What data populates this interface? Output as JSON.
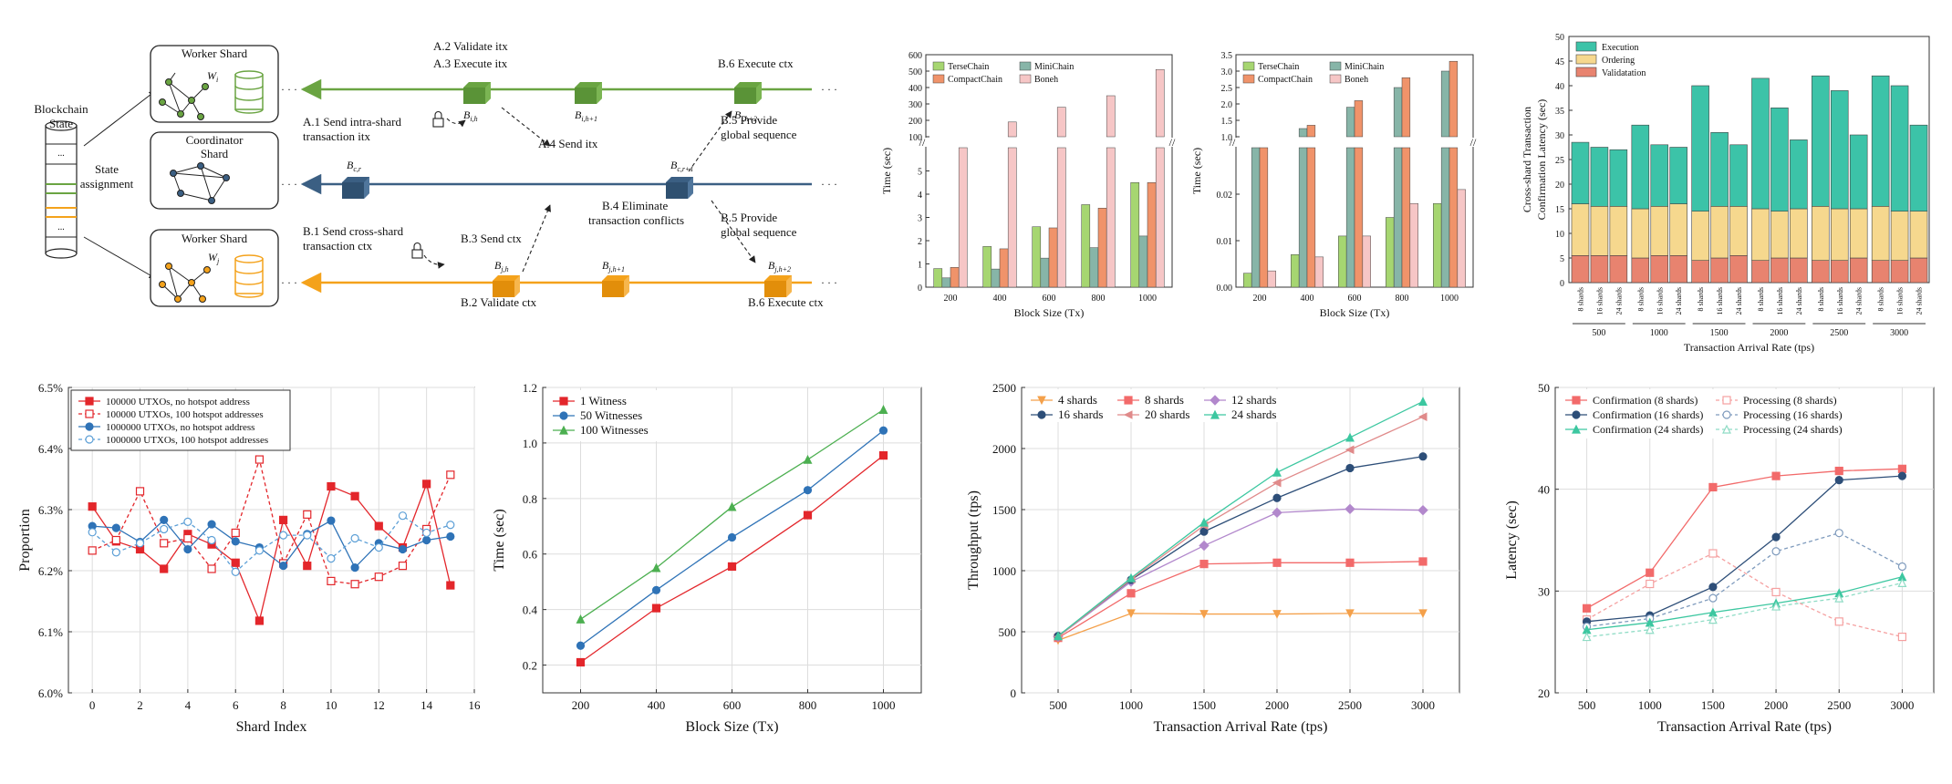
{
  "diagram": {
    "blockchain_state": [
      "Blockchain",
      "State"
    ],
    "state_assignment": [
      "State",
      "assignment"
    ],
    "worker_shard_i": "Worker Shard",
    "worker_shard_i_sub": "W",
    "worker_shard_i_subidx": "i",
    "coordinator_shard": [
      "Coordinator",
      "Shard"
    ],
    "worker_shard_j": "Worker Shard",
    "worker_shard_j_sub": "W",
    "worker_shard_j_subidx": "j",
    "dots": "· · ·",
    "a1": [
      "A.1 Send intra-shard",
      "transaction itx"
    ],
    "a2": "A.2 Validate itx",
    "a3": "A.3 Execute itx",
    "a4": "A.4 Send itx",
    "b1": [
      "B.1 Send cross-shard",
      "transaction ctx"
    ],
    "b2": "B.2 Validate ctx",
    "b3": "B.3 Send ctx",
    "b4": [
      "B.4 Eliminate",
      "transaction conflicts"
    ],
    "b5a": [
      "B.5 Provide",
      "global sequence"
    ],
    "b5b": [
      "B.5 Provide",
      "global sequence"
    ],
    "b6a": "B.6 Execute ctx",
    "b6b": "B.6 Execute ctx",
    "block_labels": {
      "bih": "B",
      "bih_sub": "i,h",
      "bih1": "B",
      "bih1_sub": "i,h+1",
      "bih2": "B",
      "bih2_sub": "i,h+2",
      "bcr": "B",
      "bcr_sub": "c,r",
      "bcr1": "B",
      "bcr1_sub": "c,r+1",
      "bjh": "B",
      "bjh_sub": "j,h",
      "bjh1": "B",
      "bjh1_sub": "j,h+1",
      "bjh2": "B",
      "bjh2_sub": "j,h+2"
    },
    "colors": {
      "green": "#6aa442",
      "blue": "#3b5f83",
      "orange": "#f4a21b"
    }
  },
  "chart_data": [
    {
      "id": "chart-a",
      "type": "bar",
      "xlabel": "Block Size (Tx)",
      "ylabel": "Time (sec)",
      "categories": [
        "200",
        "400",
        "600",
        "800",
        "1000"
      ],
      "axis_break": {
        "lower_max": 6,
        "upper_min": 100,
        "upper_max": 600
      },
      "lower_ticks": [
        0,
        1,
        2,
        3,
        4,
        5
      ],
      "upper_ticks": [
        100,
        200,
        300,
        400,
        500,
        600
      ],
      "series": [
        {
          "name": "TerseChain",
          "color": "#a6d671",
          "values": [
            0.8,
            1.75,
            2.6,
            3.55,
            4.5
          ]
        },
        {
          "name": "MiniChain",
          "color": "#87b5a8",
          "values": [
            0.4,
            0.78,
            1.25,
            1.7,
            2.2
          ]
        },
        {
          "name": "CompactChain",
          "color": "#f0936a",
          "values": [
            0.85,
            1.65,
            2.55,
            3.4,
            4.5
          ]
        },
        {
          "name": "Boneh",
          "color": "#f6c6c6",
          "values": [
            90,
            190,
            280,
            350,
            510
          ]
        }
      ],
      "legend_position": "top"
    },
    {
      "id": "chart-b",
      "type": "bar",
      "xlabel": "Block Size (Tx)",
      "ylabel": "Time (sec)",
      "categories": [
        "200",
        "400",
        "600",
        "800",
        "1000"
      ],
      "axis_break": {
        "lower_max": 0.03,
        "upper_min": 1.0,
        "upper_max": 3.5
      },
      "lower_ticks": [
        0.0,
        0.01,
        0.02
      ],
      "upper_ticks": [
        1.0,
        1.5,
        2.0,
        2.5,
        3.0,
        3.5
      ],
      "series": [
        {
          "name": "TerseChain",
          "color": "#a6d671",
          "values": [
            0.003,
            0.007,
            0.011,
            0.015,
            0.018
          ]
        },
        {
          "name": "MiniChain",
          "color": "#87b5a8",
          "values": [
            0.78,
            1.25,
            1.9,
            2.5,
            3.0
          ]
        },
        {
          "name": "CompactChain",
          "color": "#f0936a",
          "values": [
            0.82,
            1.35,
            2.1,
            2.8,
            3.3
          ]
        },
        {
          "name": "Boneh",
          "color": "#f6c6c6",
          "values": [
            0.0035,
            0.0065,
            0.011,
            0.018,
            0.021
          ]
        }
      ],
      "legend_position": "top"
    },
    {
      "id": "chart-c",
      "type": "bar",
      "stacked": true,
      "xlabel": "Transaction Arrival Rate (tps)",
      "ylabel": [
        "Cross-shard Transaction",
        "Confirmation Latency (sec)"
      ],
      "ylim": [
        0,
        50
      ],
      "yticks": [
        0,
        5,
        10,
        15,
        20,
        25,
        30,
        35,
        40,
        45,
        50
      ],
      "groups": [
        "500",
        "1000",
        "1500",
        "2000",
        "2500",
        "3000"
      ],
      "subcategories": [
        "8 shards",
        "16 shards",
        "24 shards"
      ],
      "series": [
        {
          "name": "Validatation",
          "color": "#e8836f",
          "values": [
            5.5,
            5.5,
            5.5,
            5,
            5.5,
            5.5,
            4.5,
            5,
            5.5,
            4.5,
            5,
            5,
            4.5,
            4.5,
            5,
            4.5,
            4.5,
            5
          ]
        },
        {
          "name": "Ordering",
          "color": "#f6d88e",
          "values": [
            10.5,
            10,
            10,
            10,
            10,
            10.5,
            10,
            10.5,
            10,
            10.5,
            9.5,
            10,
            11,
            10.5,
            10,
            11,
            10,
            9.5
          ]
        },
        {
          "name": "Execution",
          "color": "#3cc3a8",
          "values": [
            12.5,
            12,
            11.5,
            17,
            12.5,
            11.5,
            25.5,
            15,
            12.5,
            26.5,
            21,
            14,
            26.5,
            24,
            15,
            26.5,
            25.5,
            17.5
          ]
        }
      ],
      "legend_position": "top-left"
    },
    {
      "id": "chart-d",
      "type": "line",
      "xlabel": "Shard Index",
      "ylabel": "Proportion",
      "xlim": [
        -1,
        16
      ],
      "xticks": [
        0,
        2,
        4,
        6,
        8,
        10,
        12,
        14,
        16
      ],
      "ylim": [
        6.0,
        6.5
      ],
      "yticks": [
        "6.0%",
        "6.1%",
        "6.2%",
        "6.3%",
        "6.4%",
        "6.5%"
      ],
      "series": [
        {
          "name": "100000 UTXOs, no hotspot address",
          "color": "#e3262b",
          "marker": "square-filled",
          "dash": false,
          "values": [
            6.305,
            6.248,
            6.235,
            6.203,
            6.26,
            6.243,
            6.213,
            6.118,
            6.283,
            6.208,
            6.338,
            6.322,
            6.273,
            6.238,
            6.342,
            6.176
          ]
        },
        {
          "name": "100000 UTXOs, 100 hotspot addresses",
          "color": "#e3262b",
          "marker": "square-open",
          "dash": true,
          "values": [
            6.233,
            6.25,
            6.33,
            6.245,
            6.253,
            6.203,
            6.262,
            6.382,
            6.212,
            6.292,
            6.183,
            6.178,
            6.19,
            6.208,
            6.268,
            6.357
          ]
        },
        {
          "name": "1000000 UTXOs, no hotspot address",
          "color": "#2f73b7",
          "marker": "circle-filled",
          "dash": false,
          "values": [
            6.273,
            6.27,
            6.247,
            6.283,
            6.235,
            6.276,
            6.248,
            6.238,
            6.208,
            6.26,
            6.282,
            6.205,
            6.245,
            6.235,
            6.25,
            6.256
          ]
        },
        {
          "name": "1000000 UTXOs, 100 hotspot addresses",
          "color": "#5c9fd6",
          "marker": "circle-open",
          "dash": true,
          "values": [
            6.263,
            6.23,
            6.245,
            6.268,
            6.28,
            6.25,
            6.198,
            6.233,
            6.258,
            6.258,
            6.22,
            6.253,
            6.238,
            6.29,
            6.262,
            6.275
          ]
        }
      ],
      "legend_position": "top-left"
    },
    {
      "id": "chart-e",
      "type": "line",
      "xlabel": "Block Size (Tx)",
      "ylabel": "Time (sec)",
      "x": [
        200,
        400,
        600,
        800,
        1000
      ],
      "xlim": [
        100,
        1100
      ],
      "ylim": [
        0.1,
        1.2
      ],
      "yticks": [
        "0.2",
        "0.4",
        "0.6",
        "0.8",
        "1.0",
        "1.2"
      ],
      "series": [
        {
          "name": "1 Witness",
          "color": "#e3262b",
          "marker": "square",
          "values": [
            0.21,
            0.405,
            0.555,
            0.74,
            0.955
          ]
        },
        {
          "name": "50 Witnesses",
          "color": "#2f73b7",
          "marker": "circle",
          "values": [
            0.27,
            0.47,
            0.66,
            0.83,
            1.045
          ]
        },
        {
          "name": "100 Witnesses",
          "color": "#4caf50",
          "marker": "triangle",
          "values": [
            0.365,
            0.55,
            0.77,
            0.94,
            1.12
          ]
        }
      ],
      "legend_position": "top-left"
    },
    {
      "id": "chart-f",
      "type": "line",
      "xlabel": "Transaction Arrival Rate (tps)",
      "ylabel": "Throughput (tps)",
      "x": [
        500,
        1000,
        1500,
        2000,
        2500,
        3000
      ],
      "xlim": [
        250,
        3250
      ],
      "ylim": [
        0,
        2500
      ],
      "yticks": [
        "0",
        "500",
        "1000",
        "1500",
        "2000",
        "2500"
      ],
      "series": [
        {
          "name": "4 shards",
          "color": "#f4a04a",
          "marker": "triangle-down",
          "values": [
            430,
            650,
            645,
            645,
            650,
            650
          ]
        },
        {
          "name": "8 shards",
          "color": "#f26a6a",
          "marker": "square",
          "values": [
            450,
            815,
            1055,
            1065,
            1065,
            1075
          ]
        },
        {
          "name": "12 shards",
          "color": "#b288cc",
          "marker": "diamond",
          "values": [
            460,
            910,
            1205,
            1475,
            1505,
            1495
          ]
        },
        {
          "name": "16 shards",
          "color": "#2d4e78",
          "marker": "circle",
          "values": [
            465,
            925,
            1320,
            1595,
            1840,
            1935
          ]
        },
        {
          "name": "20 shards",
          "color": "#e08a8a",
          "marker": "triangle-left",
          "values": [
            460,
            930,
            1370,
            1720,
            1990,
            2260
          ]
        },
        {
          "name": "24 shards",
          "color": "#3cc7a0",
          "marker": "triangle",
          "values": [
            465,
            940,
            1395,
            1805,
            2090,
            2385
          ]
        }
      ],
      "legend_position": "top-left"
    },
    {
      "id": "chart-g",
      "type": "line",
      "xlabel": "Transaction Arrival Rate (tps)",
      "ylabel": "Latency (sec)",
      "x": [
        500,
        1000,
        1500,
        2000,
        2500,
        3000
      ],
      "xlim": [
        250,
        3250
      ],
      "ylim": [
        20,
        50
      ],
      "yticks": [
        "20",
        "30",
        "40",
        "50"
      ],
      "series": [
        {
          "name": "Confirmation (8 shards)",
          "color": "#f26a6a",
          "marker": "square",
          "dash": false,
          "values": [
            28.3,
            31.8,
            40.2,
            41.3,
            41.8,
            42.0
          ]
        },
        {
          "name": "Processing (8 shards)",
          "color": "#f5a0a0",
          "marker": "square-open",
          "dash": true,
          "values": [
            27.2,
            30.7,
            33.7,
            29.9,
            27.0,
            25.5
          ]
        },
        {
          "name": "Confirmation (16 shards)",
          "color": "#2d4e78",
          "marker": "circle",
          "dash": false,
          "values": [
            27.0,
            27.6,
            30.4,
            35.3,
            40.9,
            41.3
          ]
        },
        {
          "name": "Processing (16 shards)",
          "color": "#7f9bbd",
          "marker": "circle-open",
          "dash": true,
          "values": [
            26.5,
            27.3,
            29.3,
            33.9,
            35.7,
            32.4
          ]
        },
        {
          "name": "Confirmation (24 shards)",
          "color": "#3cc7a0",
          "marker": "triangle",
          "dash": false,
          "values": [
            26.2,
            26.9,
            27.9,
            28.8,
            29.8,
            31.4
          ]
        },
        {
          "name": "Processing (24 shards)",
          "color": "#8fdcc5",
          "marker": "triangle-open",
          "dash": true,
          "values": [
            25.5,
            26.2,
            27.2,
            28.5,
            29.3,
            30.8
          ]
        }
      ],
      "legend_position": "top-left"
    }
  ]
}
